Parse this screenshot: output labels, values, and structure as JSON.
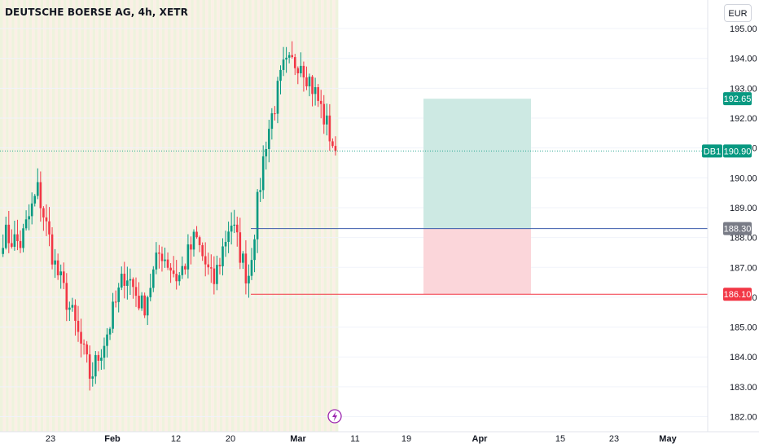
{
  "header": {
    "title": "DEUTSCHE BOERSE AG, 4h, XETR",
    "currency_button": "EUR"
  },
  "colors": {
    "up": "#089981",
    "down": "#f23645",
    "session_band_a": "#eef3dd",
    "session_band_b": "#fbefe6",
    "target_zone": "#cde9e3",
    "stop_zone": "#fbd6da",
    "entry_line": "#3b5bab",
    "stop_line": "#f23645",
    "price_line": "#089981"
  },
  "chart_data": {
    "type": "candlestick",
    "symbol": "DB1",
    "interval": "4h",
    "exchange": "XETR",
    "ylim": [
      181.8,
      195.4
    ],
    "y_ticks": [
      182,
      183,
      184,
      185,
      186,
      187,
      188,
      189,
      190,
      191,
      192,
      193,
      194,
      195
    ],
    "y_tick_labels": [
      "182.00",
      "183.00",
      "184.00",
      "185.00",
      "186.00",
      "187.00",
      "188.00",
      "189.00",
      "190.00",
      "191.00",
      "192.00",
      "193.00",
      "194.00",
      "195.00"
    ],
    "x_tick_labels": [
      "23",
      "Feb",
      "12",
      "20",
      "Mar",
      "11",
      "19",
      "Apr",
      "15",
      "23",
      "May"
    ],
    "x_bold_labels": [
      "Feb",
      "Mar",
      "Apr",
      "May"
    ],
    "price_tags": {
      "target": "192.65",
      "last_symbol": "DB1",
      "last": "190.90",
      "entry": "188.30",
      "stop": "186.10"
    },
    "levels": {
      "target": 192.65,
      "last": 190.9,
      "entry": 188.3,
      "stop": 186.1
    },
    "waypoints": [
      [
        188.1,
        189.0
      ],
      [
        187.8,
        188.6
      ],
      [
        189.6,
        190.1
      ],
      [
        187.0,
        186.5
      ],
      [
        185.3,
        184.4
      ],
      [
        183.3,
        183.2
      ],
      [
        184.9,
        185.4
      ],
      [
        186.9,
        187.1
      ],
      [
        185.6,
        186.1
      ],
      [
        187.6,
        188.0
      ],
      [
        186.6,
        187.0
      ],
      [
        188.0,
        187.6
      ],
      [
        186.4,
        186.8
      ],
      [
        188.6,
        189.1
      ],
      [
        186.6,
        186.3
      ],
      [
        191.2,
        191.5
      ],
      [
        193.6,
        193.4
      ],
      [
        194.0,
        194.1
      ],
      [
        192.6,
        192.4
      ],
      [
        190.9,
        190.9
      ]
    ]
  }
}
